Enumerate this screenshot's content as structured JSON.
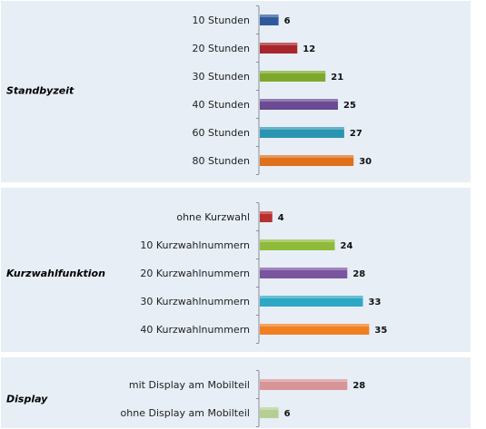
{
  "chart_data": {
    "type": "bar",
    "orientation": "horizontal",
    "xlim": [
      0,
      36
    ],
    "groups": [
      {
        "name": "Standbyzeit",
        "categories": [
          "10 Stunden",
          "20 Stunden",
          "30 Stunden",
          "40 Stunden",
          "60 Stunden",
          "80 Stunden"
        ],
        "values": [
          6,
          12,
          21,
          25,
          27,
          30
        ],
        "colors": [
          "#2e5a9c",
          "#a8262b",
          "#7ea82c",
          "#6a4a93",
          "#2a95b0",
          "#e0701c"
        ]
      },
      {
        "name": "Kurzwahlfunktion",
        "categories": [
          "ohne Kurzwahl",
          "10 Kurzwahlnummern",
          "20 Kurzwahlnummern",
          "30 Kurzwahlnummern",
          "40 Kurzwahlnummern"
        ],
        "values": [
          4,
          24,
          28,
          33,
          35
        ],
        "colors": [
          "#b8302f",
          "#8fbb3a",
          "#7a559f",
          "#2fa7c6",
          "#f07f22"
        ]
      },
      {
        "name": "Display",
        "categories": [
          "mit Display am Mobilteil",
          "ohne Display am Mobilteil"
        ],
        "values": [
          28,
          6
        ],
        "colors": [
          "#d89597",
          "#b5cf93"
        ]
      }
    ]
  }
}
